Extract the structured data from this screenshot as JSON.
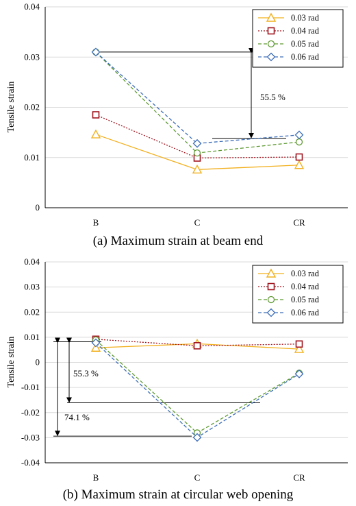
{
  "chart_data": [
    {
      "type": "line",
      "caption": "(a) Maximum strain at beam end",
      "ylabel": "Tensile strain",
      "categories": [
        "B",
        "C",
        "CR"
      ],
      "ylim": [
        0,
        0.04
      ],
      "yticks": [
        "0",
        "0.01",
        "0.02",
        "0.03",
        "0.04"
      ],
      "grid": true,
      "legend_position": "top-right",
      "series": [
        {
          "name": "0.03 rad",
          "values": [
            0.0146,
            0.0076,
            0.0085
          ],
          "color": "#F2B01E",
          "marker": "triangle",
          "dash": "solid"
        },
        {
          "name": "0.04 rad",
          "values": [
            0.0185,
            0.0099,
            0.0101
          ],
          "color": "#A0141E",
          "marker": "square",
          "dash": "dotted"
        },
        {
          "name": "0.05 rad",
          "values": [
            0.031,
            0.0109,
            0.0131
          ],
          "color": "#5E9A32",
          "marker": "circle",
          "dash": "dashed"
        },
        {
          "name": "0.06 rad",
          "values": [
            0.031,
            0.0128,
            0.0145
          ],
          "color": "#3C6DB8",
          "marker": "diamond",
          "dash": "dashed"
        }
      ],
      "annotations": [
        {
          "text": "55.5 %"
        }
      ]
    },
    {
      "type": "line",
      "caption": "(b) Maximum strain at circular web opening",
      "ylabel": "Tensile strain",
      "categories": [
        "B",
        "C",
        "CR"
      ],
      "ylim": [
        -0.04,
        0.04
      ],
      "yticks": [
        "-0.04",
        "-0.03",
        "-0.02",
        "-0.01",
        "0",
        "0.01",
        "0.02",
        "0.03",
        "0.04"
      ],
      "grid": true,
      "legend_position": "top-right",
      "series": [
        {
          "name": "0.03 rad",
          "values": [
            0.0058,
            0.0074,
            0.0053
          ],
          "color": "#F2B01E",
          "marker": "triangle",
          "dash": "solid"
        },
        {
          "name": "0.04 rad",
          "values": [
            0.0092,
            0.0066,
            0.0073
          ],
          "color": "#A0141E",
          "marker": "square",
          "dash": "dotted"
        },
        {
          "name": "0.05 rad",
          "values": [
            0.0089,
            -0.0281,
            -0.0043
          ],
          "color": "#5E9A32",
          "marker": "circle",
          "dash": "dashed"
        },
        {
          "name": "0.06 rad",
          "values": [
            0.0078,
            -0.0299,
            -0.0046
          ],
          "color": "#3C6DB8",
          "marker": "diamond",
          "dash": "dashed"
        }
      ],
      "annotations": [
        {
          "text": "55.3 %"
        },
        {
          "text": "74.1 %"
        }
      ]
    }
  ]
}
